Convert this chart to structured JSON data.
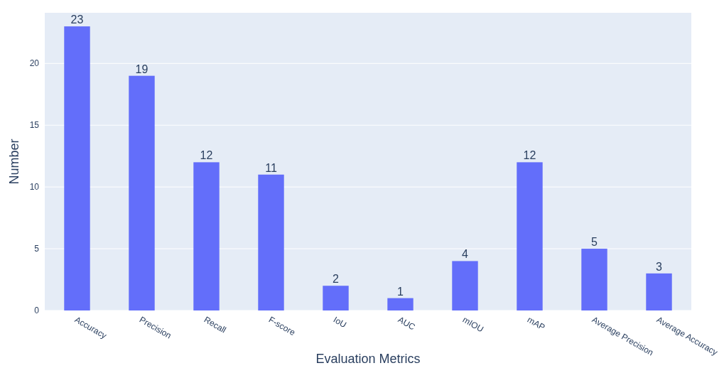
{
  "chart_data": {
    "type": "bar",
    "xlabel": "Evaluation Metrics",
    "ylabel": "Number",
    "categories": [
      "Accuracy",
      "Precision",
      "Recall",
      "F-score",
      "IoU",
      "AUC",
      "mIOU",
      "mAP",
      "Average Precision",
      "Average Accuracy"
    ],
    "values": [
      23,
      19,
      12,
      11,
      2,
      1,
      4,
      12,
      5,
      3
    ],
    "color": "#636efa",
    "ylim": [
      0,
      24.1
    ],
    "yticks": [
      0,
      5,
      10,
      15,
      20
    ],
    "grid": "y",
    "data_labels": true
  }
}
